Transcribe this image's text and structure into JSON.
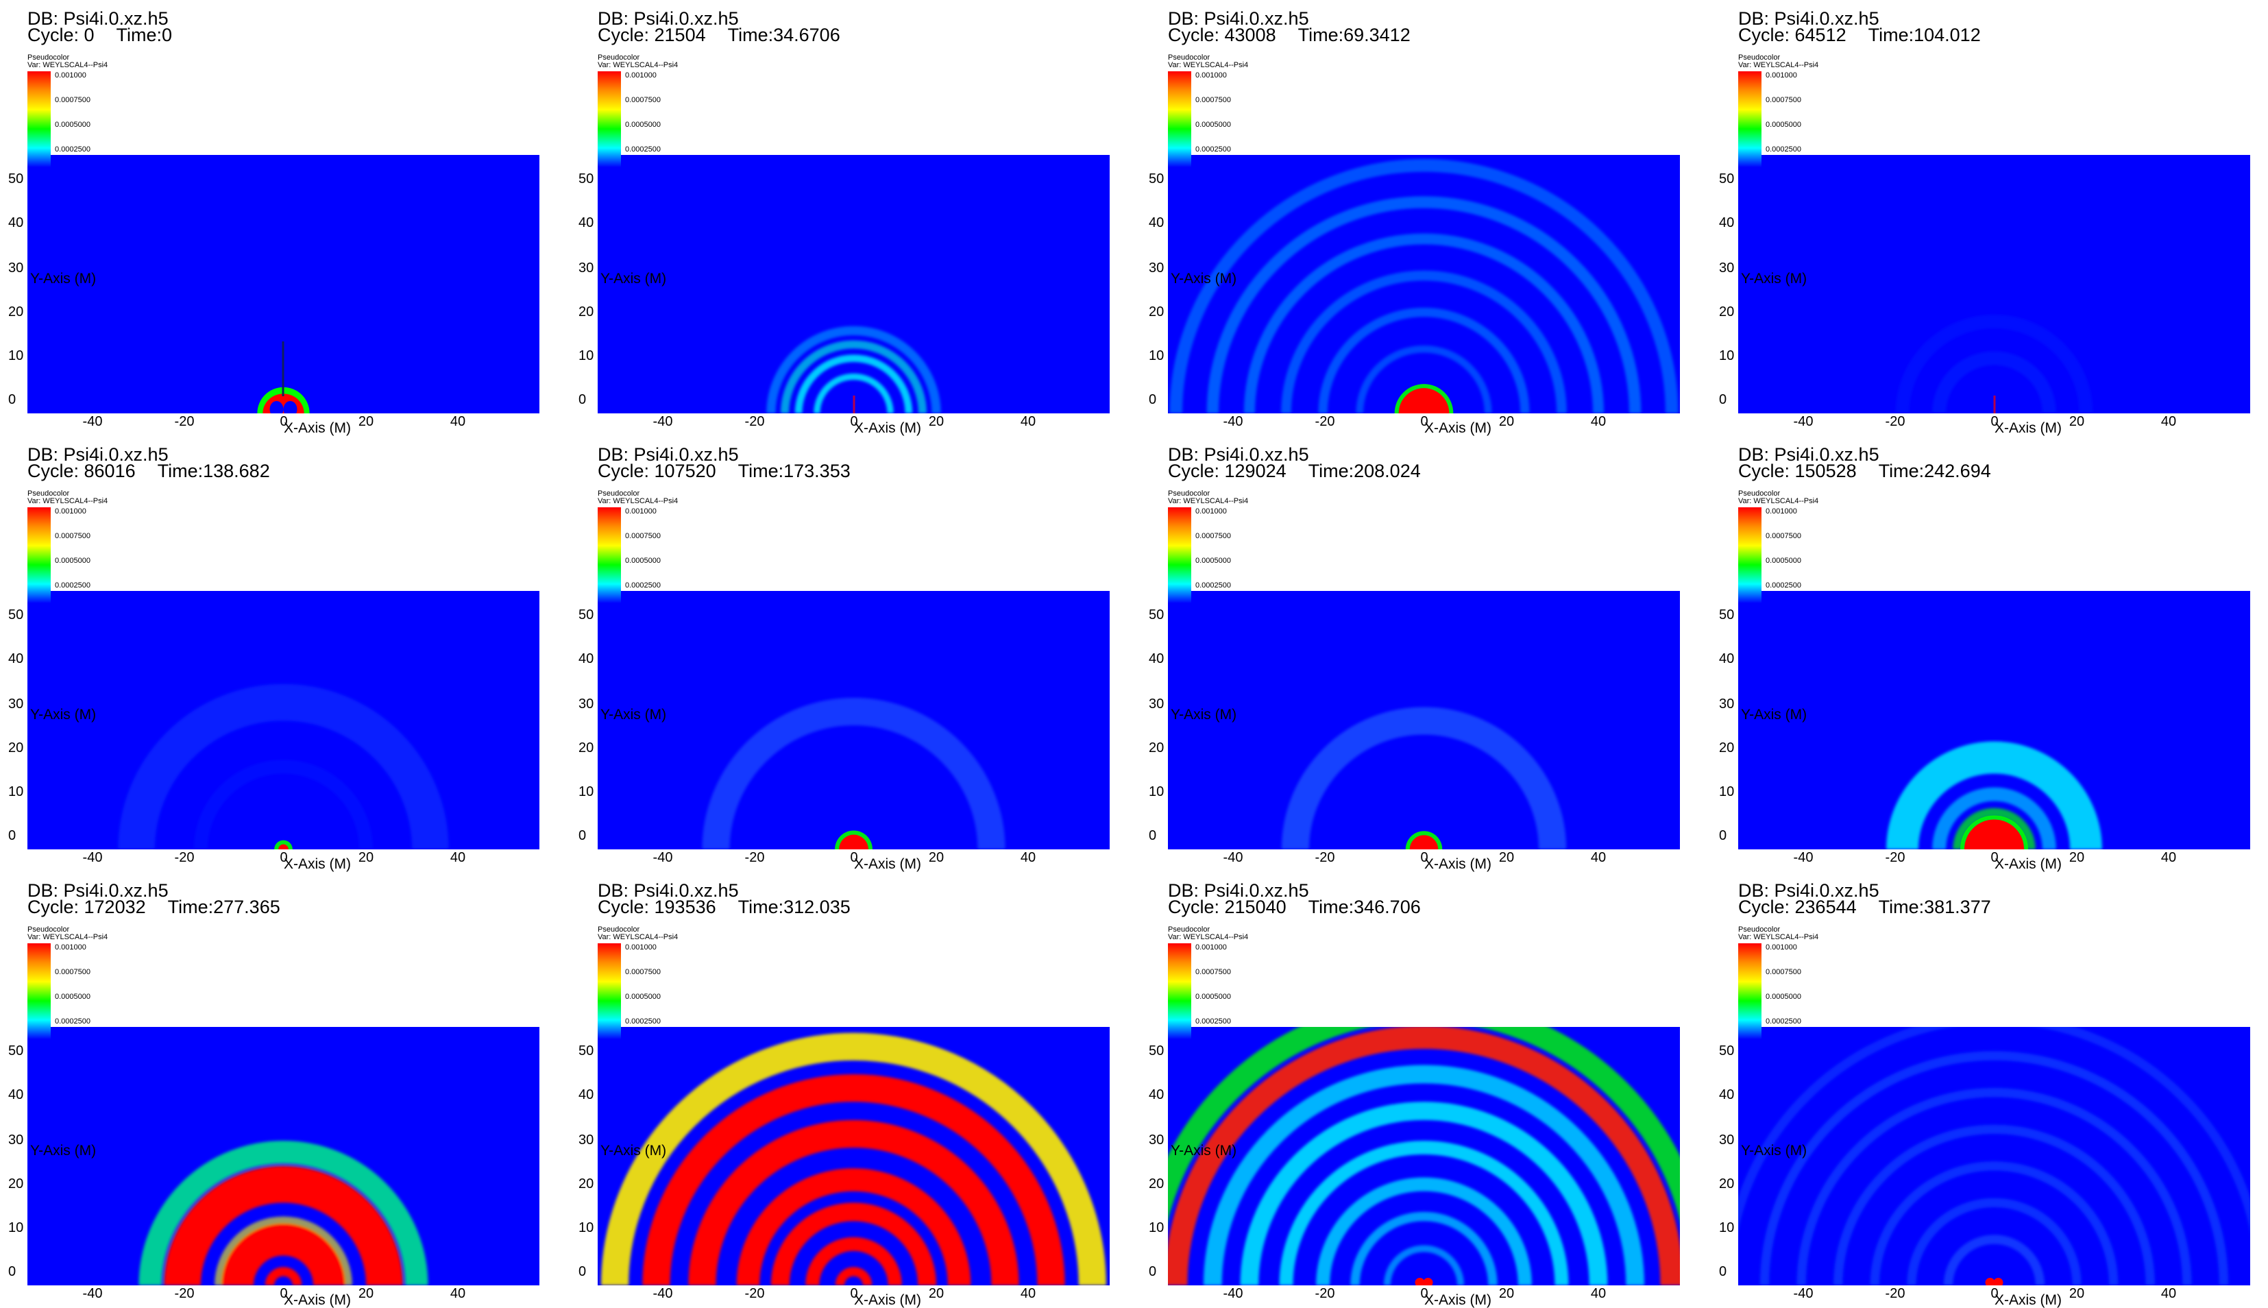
{
  "legend": {
    "title": "Pseudocolor",
    "var": "Var: WEYLSCAL4--Psi4",
    "ticks": [
      "0.001000",
      "0.0007500",
      "0.0005000",
      "0.0002500"
    ]
  },
  "axes": {
    "x_label": "X-Axis (M)",
    "y_label": "Y-Axis (M)",
    "x_ticks": [
      "-40",
      "-20",
      "0",
      "20",
      "40"
    ],
    "y_ticks": [
      "50",
      "40",
      "30",
      "20",
      "10",
      "0"
    ]
  },
  "panels": [
    {
      "db": "DB: Psi4i.0.xz.h5",
      "cycle": "Cycle: 0",
      "time": "Time:0"
    },
    {
      "db": "DB: Psi4i.0.xz.h5",
      "cycle": "Cycle: 21504",
      "time": "Time:34.6706"
    },
    {
      "db": "DB: Psi4i.0.xz.h5",
      "cycle": "Cycle: 43008",
      "time": "Time:69.3412"
    },
    {
      "db": "DB: Psi4i.0.xz.h5",
      "cycle": "Cycle: 64512",
      "time": "Time:104.012"
    },
    {
      "db": "DB: Psi4i.0.xz.h5",
      "cycle": "Cycle: 86016",
      "time": "Time:138.682"
    },
    {
      "db": "DB: Psi4i.0.xz.h5",
      "cycle": "Cycle: 107520",
      "time": "Time:173.353"
    },
    {
      "db": "DB: Psi4i.0.xz.h5",
      "cycle": "Cycle: 129024",
      "time": "Time:208.024"
    },
    {
      "db": "DB: Psi4i.0.xz.h5",
      "cycle": "Cycle: 150528",
      "time": "Time:242.694"
    },
    {
      "db": "DB: Psi4i.0.xz.h5",
      "cycle": "Cycle: 172032",
      "time": "Time:277.365"
    },
    {
      "db": "DB: Psi4i.0.xz.h5",
      "cycle": "Cycle: 193536",
      "time": "Time:312.035"
    },
    {
      "db": "DB: Psi4i.0.xz.h5",
      "cycle": "Cycle: 215040",
      "time": "Time:346.706"
    },
    {
      "db": "DB: Psi4i.0.xz.h5",
      "cycle": "Cycle: 236544",
      "time": "Time:381.377"
    }
  ],
  "colors": {
    "background": "#0000ff",
    "high": "#ff0000",
    "mid": "#00ff00",
    "low": "#00ffff"
  }
}
